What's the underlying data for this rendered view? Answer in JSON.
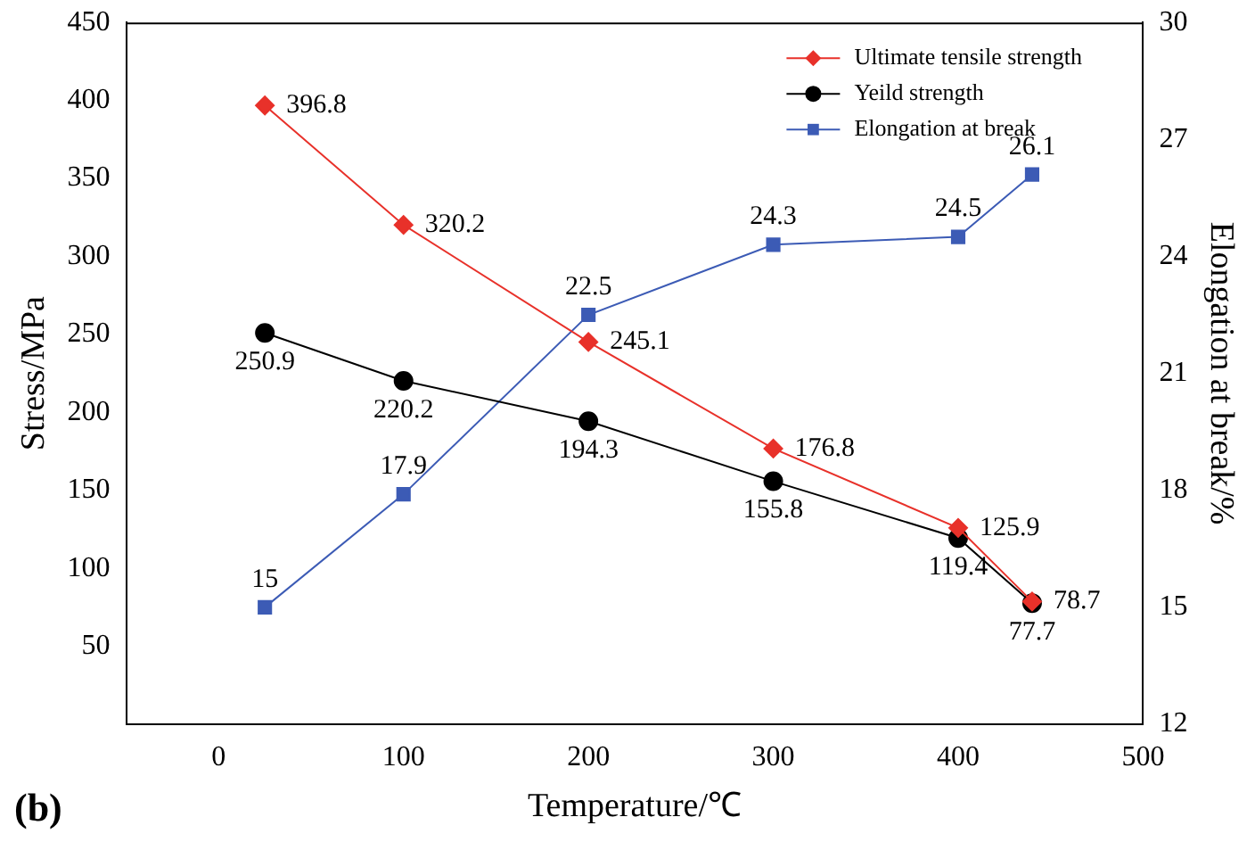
{
  "chart_data": {
    "type": "line",
    "xlabel": "Temperature/℃",
    "ylabel": "Stress/MPa",
    "y2label": "Elongation at break/%",
    "x": [
      25,
      100,
      200,
      300,
      400,
      440
    ],
    "series": [
      {
        "name": "Ultimate tensile strength",
        "color": "#e8312a",
        "marker": "diamond",
        "values": [
          396.8,
          320.2,
          245.1,
          176.8,
          125.9,
          78.7
        ],
        "value_labels": [
          "396.8",
          "320.2",
          "245.1",
          "176.8",
          "125.9",
          "78.7"
        ]
      },
      {
        "name": "Yeild strength",
        "color": "#000000",
        "marker": "circle",
        "values": [
          250.9,
          220.2,
          194.3,
          155.8,
          119.4,
          77.7
        ],
        "value_labels": [
          "250.9",
          "220.2",
          "194.3",
          "155.8",
          "119.4",
          "77.7"
        ]
      },
      {
        "name": "Elongation at break",
        "color": "#3c5bb5",
        "marker": "square",
        "axis": "y2",
        "values": [
          15,
          17.9,
          22.5,
          24.3,
          24.5,
          26.1
        ],
        "value_labels": [
          "15",
          "17.9",
          "22.5",
          "24.3",
          "24.5",
          "26.1"
        ]
      }
    ],
    "xlim": [
      -50,
      500
    ],
    "xticks": [
      0,
      100,
      200,
      300,
      400,
      500
    ],
    "ylim": [
      0,
      450
    ],
    "yticks": [
      50,
      100,
      150,
      200,
      250,
      300,
      350,
      400,
      450
    ],
    "y2lim": [
      12,
      30
    ],
    "y2ticks": [
      12,
      15,
      18,
      21,
      24,
      27,
      30
    ],
    "grid": false,
    "legend": "top right",
    "annotations": [
      "(b)"
    ]
  }
}
